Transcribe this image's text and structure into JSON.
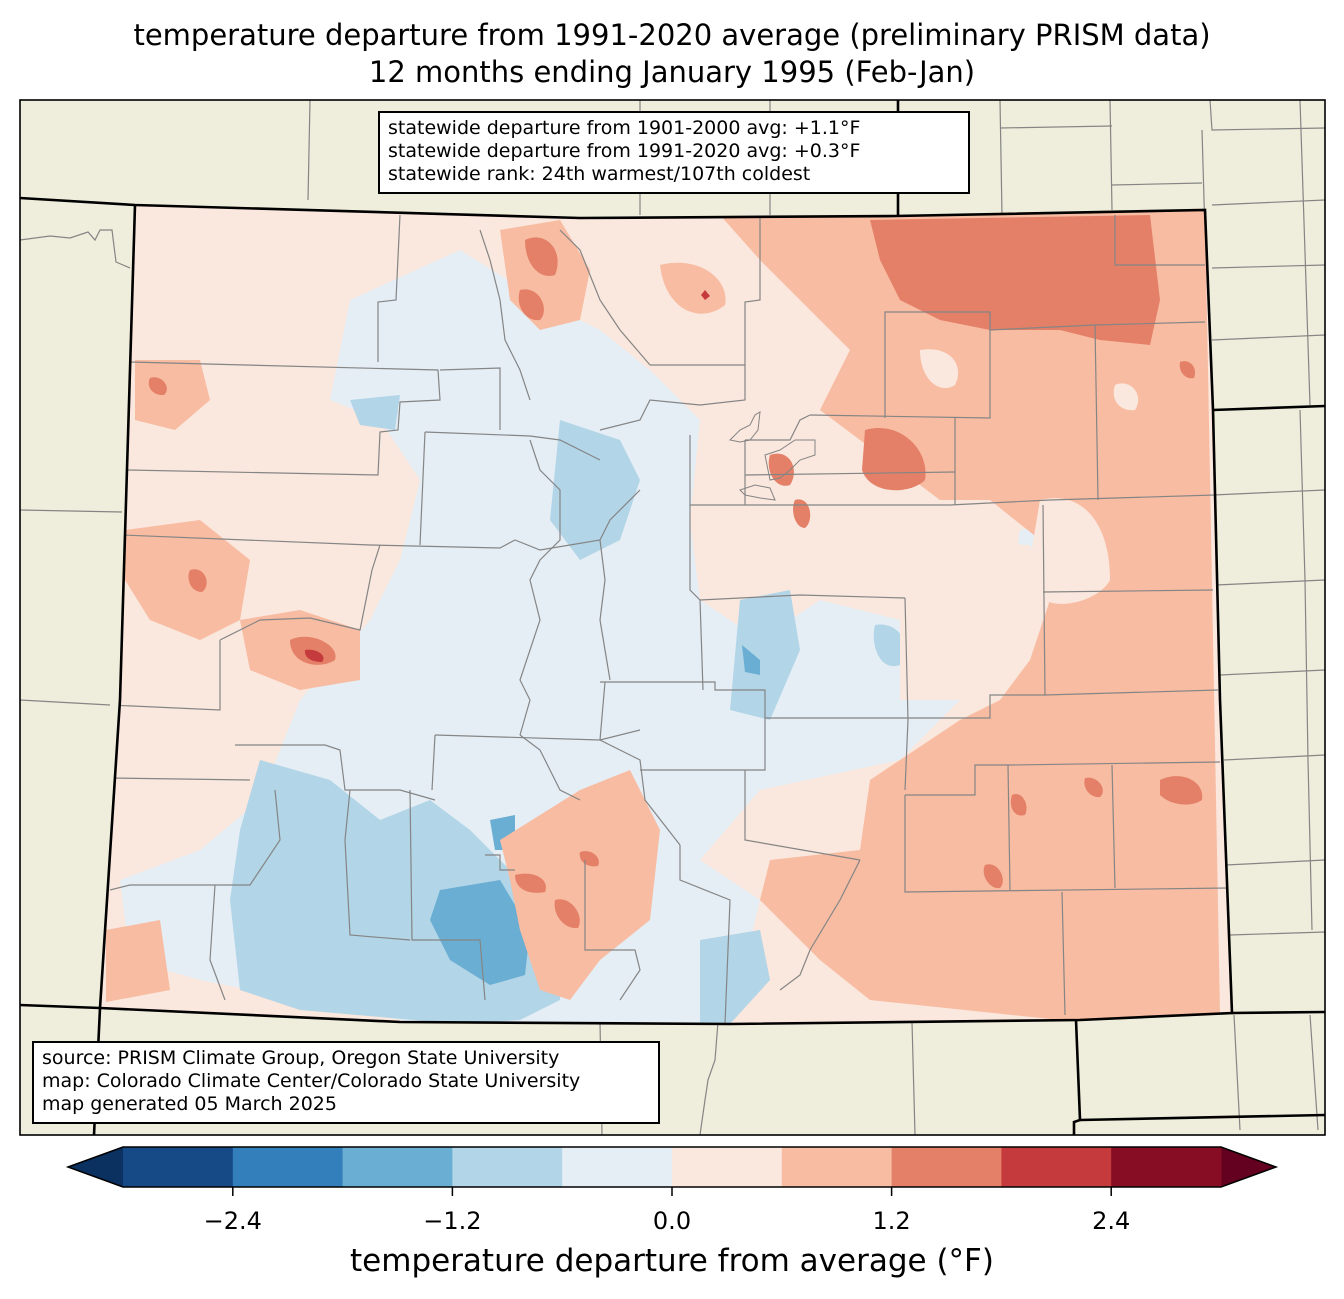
{
  "title": {
    "line1": "temperature departure from 1991-2020 average (preliminary PRISM data)",
    "line2": "12 months ending January 1995 (Feb-Jan)"
  },
  "stats_box": {
    "line1": "statewide departure from 1901-2000 avg: +1.1°F",
    "line2": "statewide departure from 1991-2020 avg: +0.3°F",
    "line3": "statewide rank: 24th warmest/107th coldest"
  },
  "credits_box": {
    "line1": "source: PRISM Climate Group, Oregon State University",
    "line2": "map: Colorado Climate Center/Colorado State University",
    "line3": "map generated 05 March 2025"
  },
  "colorbar": {
    "label": "temperature departure from average (°F)",
    "ticks": [
      "−2.4",
      "−1.2",
      "0.0",
      "1.2",
      "2.4"
    ],
    "tick_values": [
      -2.4,
      -1.2,
      0.0,
      1.2,
      2.4
    ],
    "bounds": [
      -3.0,
      -2.4,
      -1.8,
      -1.2,
      -0.6,
      0.0,
      0.6,
      1.2,
      1.8,
      2.4,
      3.0
    ],
    "colors": [
      "#154a86",
      "#327fbb",
      "#6aaed3",
      "#b2d5e7",
      "#e5eef5",
      "#fae7dd",
      "#f8bca2",
      "#e48068",
      "#c53a3c",
      "#870d24"
    ],
    "under_color": "#0a3160",
    "over_color": "#640020"
  },
  "map_colors": {
    "background": "#efeddb",
    "state_border": "#000000",
    "county_border": "#858585"
  }
}
